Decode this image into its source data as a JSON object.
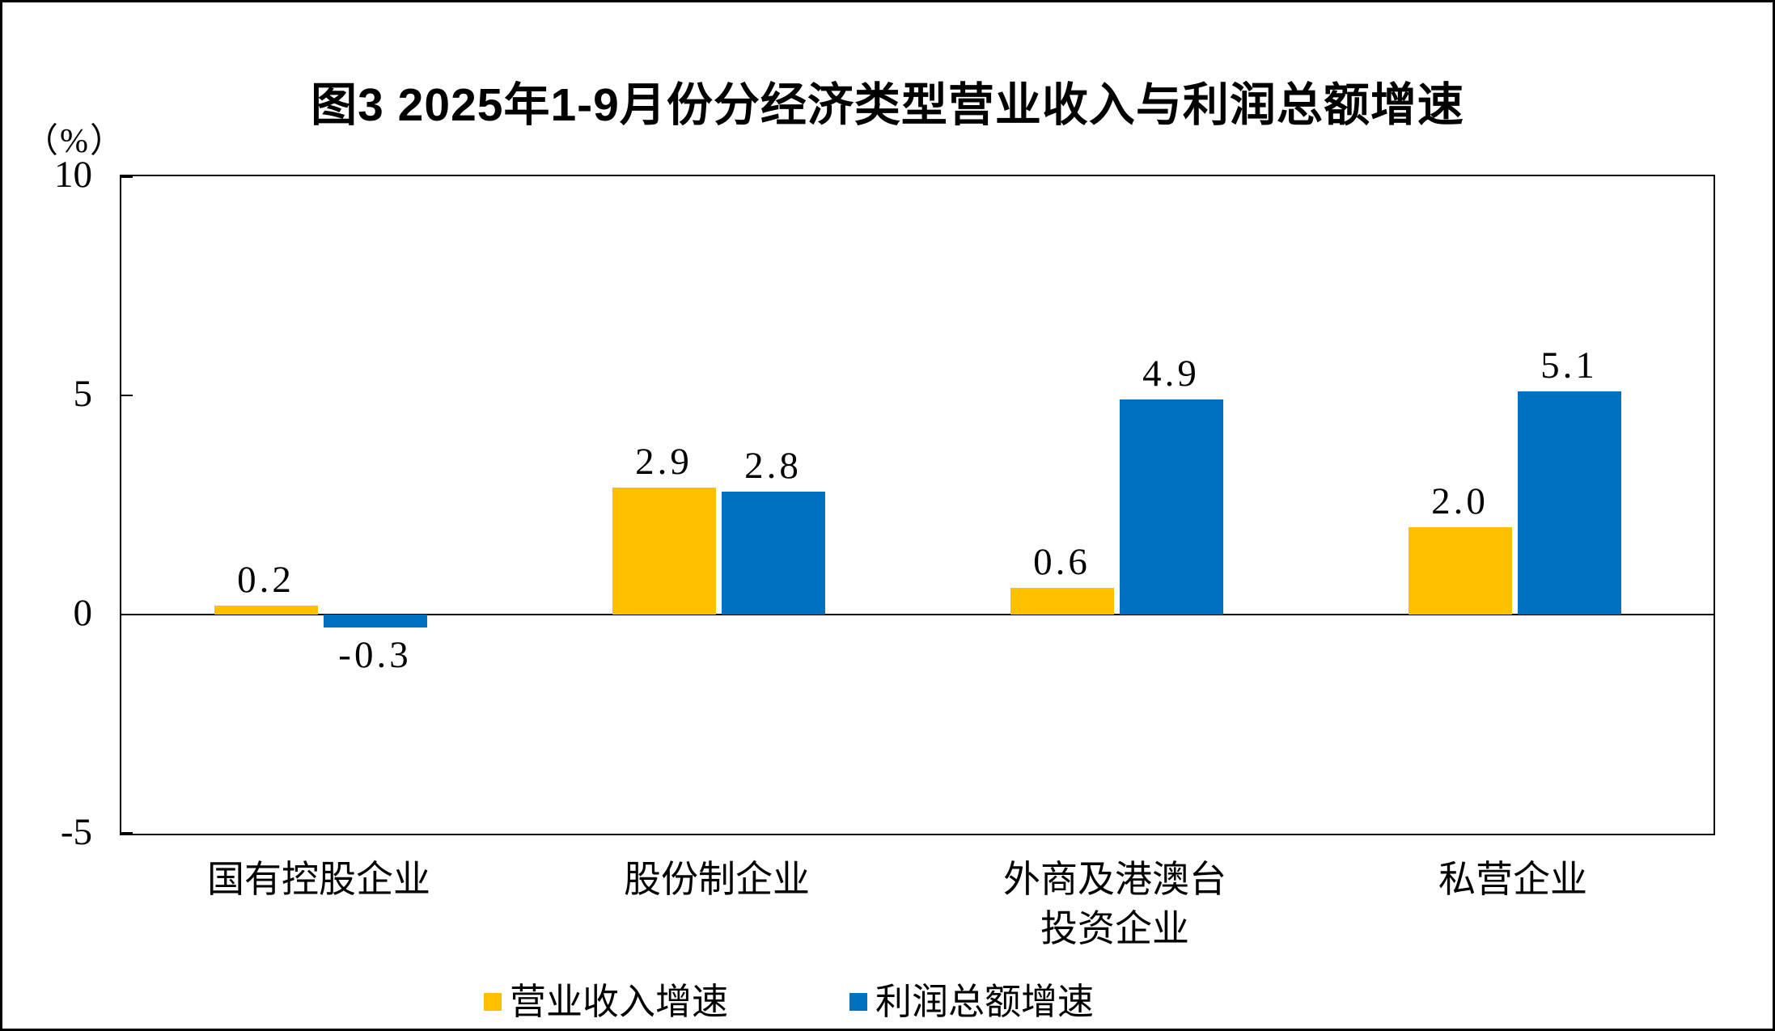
{
  "chart_data": {
    "type": "bar",
    "title": "图3 2025年1-9月份分经济类型营业收入与利润总额增速",
    "ylabel": "（%）",
    "xlabel": "",
    "categories": [
      "国有控股企业",
      "股份制企业",
      "外商及港澳台\n投资企业",
      "私营企业"
    ],
    "series": [
      {
        "name": "营业收入增速",
        "color": "#FFC000",
        "values": [
          0.2,
          2.9,
          0.6,
          2.0
        ]
      },
      {
        "name": "利润总额增速",
        "color": "#0070C0",
        "values": [
          -0.3,
          2.8,
          4.9,
          5.1
        ]
      }
    ],
    "data_labels": [
      "0.2",
      "-0.3",
      "2.9",
      "2.8",
      "0.6",
      "4.9",
      "2.0",
      "5.1"
    ],
    "y_axis": {
      "min": -5,
      "max": 10,
      "ticks": [
        10,
        5,
        0,
        -5
      ]
    },
    "grid": false,
    "legend_position": "bottom",
    "bar_colors": {
      "revenue": "#FFC000",
      "profit": "#0070C0"
    },
    "axis_color": "#000000",
    "background_color": "#FFFFFF"
  }
}
